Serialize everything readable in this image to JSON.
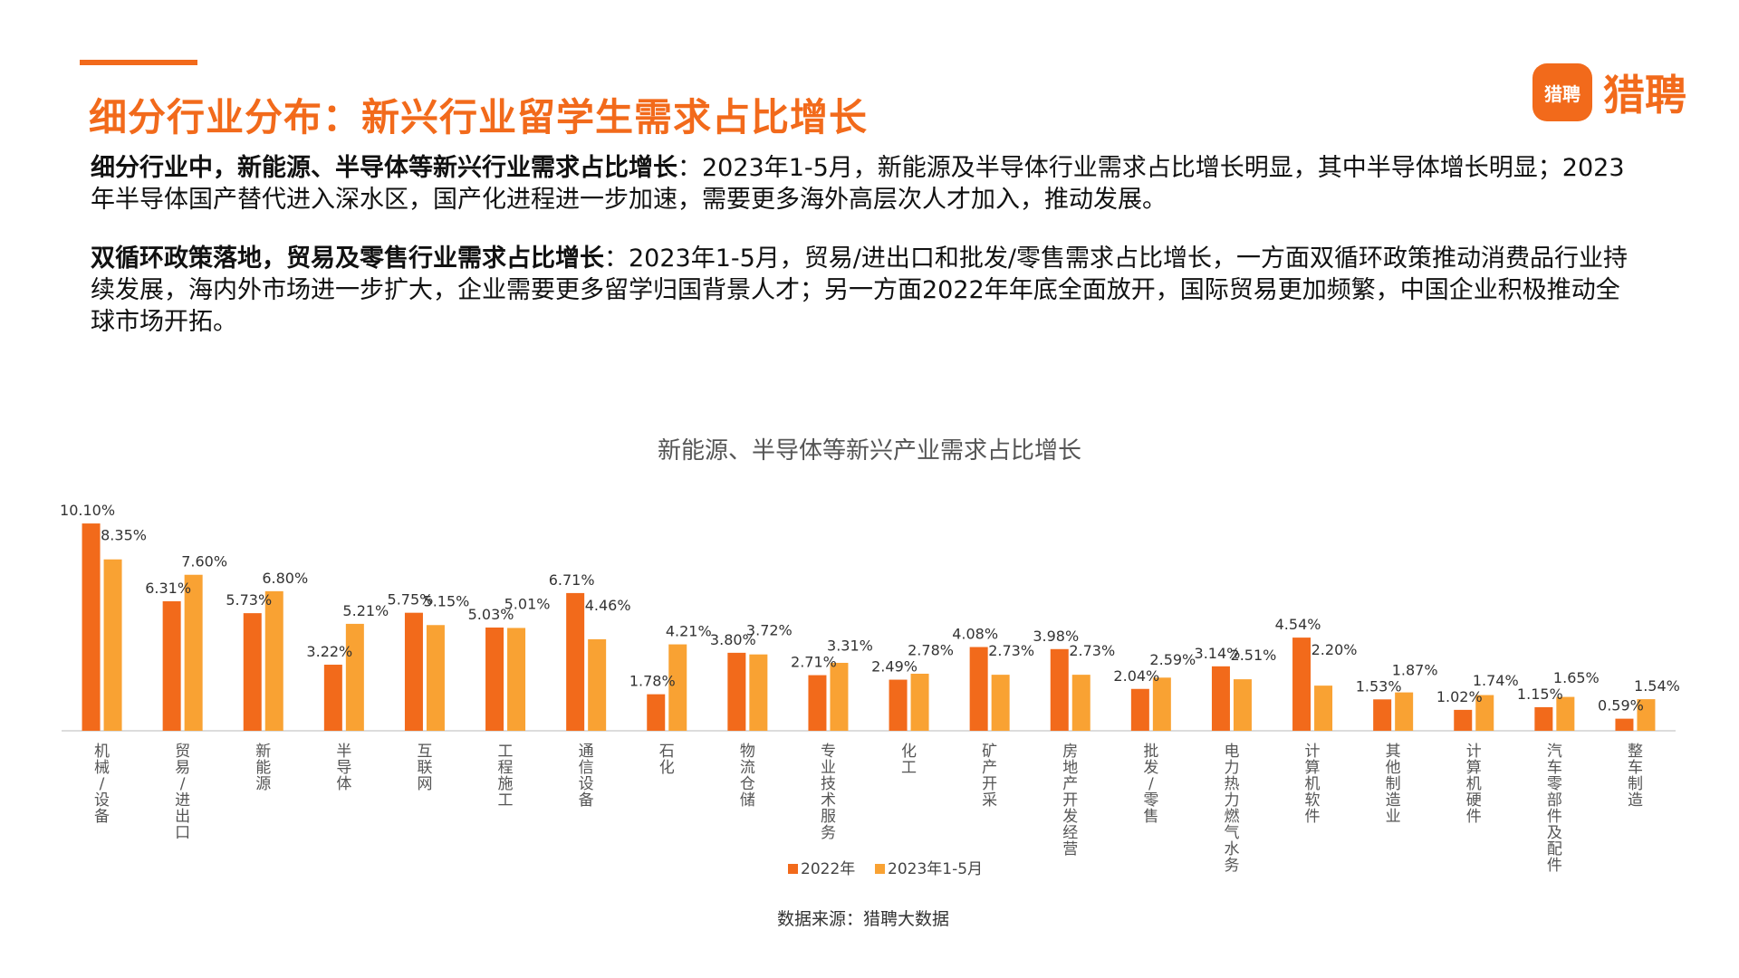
{
  "header": {
    "title": "细分行业分布：新兴行业留学生需求占比增长",
    "logo_badge": "猎聘",
    "logo_text": "猎聘"
  },
  "paragraphs": [
    {
      "bold": "细分行业中，新能源、半导体等新兴行业需求占比增长",
      "text": "：2023年1-5月，新能源及半导体行业需求占比增长明显，其中半导体增长明显；2023年半导体国产替代进入深水区，国产化进程进一步加速，需要更多海外高层次人才加入，推动发展。"
    },
    {
      "bold": "双循环政策落地，贸易及零售行业需求占比增长",
      "text": "：2023年1-5月，贸易/进出口和批发/零售需求占比增长，一方面双循环政策推动消费品行业持续发展，海内外市场进一步扩大，企业需要更多留学归国背景人才；另一方面2022年年底全面放开，国际贸易更加频繁，中国企业积极推动全球市场开拓。"
    }
  ],
  "source": "数据来源：猎聘大数据",
  "chart_data": {
    "type": "bar",
    "title": "新能源、半导体等新兴产业需求占比增长",
    "categories": [
      "机械/设备",
      "贸易/进出口",
      "新能源",
      "半导体",
      "互联网",
      "工程施工",
      "通信设备",
      "石化",
      "物流仓储",
      "专业技术服务",
      "化工",
      "矿产开采",
      "房地产开发经营",
      "批发/零售",
      "电力热力燃气水务",
      "计算机软件",
      "其他制造业",
      "计算机硬件",
      "汽车零部件及配件",
      "整车制造"
    ],
    "series": [
      {
        "name": "2022年",
        "color": "#f26a1b",
        "values": [
          10.1,
          6.31,
          5.73,
          3.22,
          5.75,
          5.03,
          6.71,
          1.78,
          3.8,
          2.71,
          2.49,
          4.08,
          3.98,
          2.04,
          3.14,
          4.54,
          1.53,
          1.02,
          1.15,
          0.59
        ],
        "labels": [
          "10.10%",
          "6.31%",
          "5.73%",
          "3.22%",
          "5.75%",
          "5.03%",
          "6.71%",
          "1.78%",
          "3.80%",
          "2.71%",
          "2.49%",
          "4.08%",
          "3.98%",
          "2.04%",
          "3.14%",
          "4.54%",
          "1.53%",
          "1.02%",
          "1.15%",
          "0.59%"
        ]
      },
      {
        "name": "2023年1-5月",
        "color": "#f9a233",
        "values": [
          8.35,
          7.6,
          6.8,
          5.21,
          5.15,
          5.01,
          4.46,
          4.21,
          3.72,
          3.31,
          2.78,
          2.73,
          2.73,
          2.59,
          2.51,
          2.2,
          1.87,
          1.74,
          1.65,
          1.54
        ],
        "labels": [
          "8.35%",
          "7.60%",
          "6.80%",
          "5.21%",
          "5.15%",
          "5.01%",
          "4.46%",
          "4.21%",
          "3.72%",
          "3.31%",
          "2.78%",
          "2.73%",
          "2.73%",
          "2.59%",
          "2.51%",
          "2.20%",
          "1.87%",
          "1.74%",
          "1.65%",
          "1.54%"
        ]
      }
    ],
    "ylim": [
      0,
      10.5
    ],
    "grid": false,
    "legend_position": "bottom-center"
  }
}
